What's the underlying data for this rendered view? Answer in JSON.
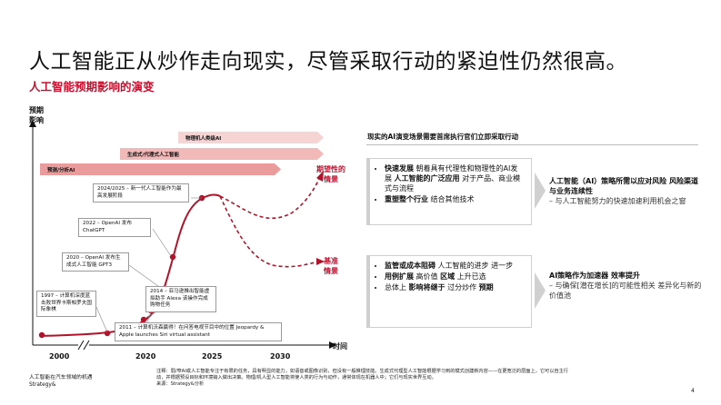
{
  "header": {
    "title": "人工智能正从炒作走向现实，尽管采取行动的紧迫性仍然很高。",
    "subtitle": "人工智能预期影响的演变"
  },
  "chart": {
    "y_label": "预期\n影响",
    "x_label": "时间",
    "ticks": [
      "2000",
      "2020",
      "2025",
      "2030"
    ],
    "banners": [
      {
        "label": "物理机人类级AI",
        "color": "#f7d4d4"
      },
      {
        "label": "生成式/代理式人工智能",
        "color": "#f2b9b9"
      },
      {
        "label": "预测/分析AI",
        "color": "#ea9c9c"
      }
    ],
    "callouts": [
      {
        "text": "2024/2025 – 新一代人工智能作为最高发展阶段"
      },
      {
        "text": "2022 – OpenAI 发布 ChatGPT"
      },
      {
        "text": "2020 – OpenAI 发布生成式人工智能 GPT3"
      },
      {
        "text": "2014 – 亚马逊推出智能虚拟助手 Alexa 该操作完成购物任务"
      },
      {
        "text": "1997 – 计算机深度蓝击败世界卡斯帕罗夫国际象棋"
      },
      {
        "text": "2011 – 计算机沃森赢得！在问答电视节目中的位置 Jeopardy & Apple launches Siri virtual assistant"
      }
    ],
    "scenarios": [
      {
        "label": "期望性的\n情景",
        "color": "#c8102e"
      },
      {
        "label": "基准\n情景",
        "color": "#c8102e"
      }
    ]
  },
  "right_panel": {
    "heading": "现实的AI演变场景需要首席执行官们立即采取行动",
    "blocks": [
      {
        "bullets": [
          {
            "bold": "快速发展",
            "text": " 朝着具有代理性和物理性的AI发展 ",
            "bold2": "人工智能的广泛应用",
            "text2": " 对于产品、商业模式与流程"
          },
          {
            "bold": "重塑整个行业",
            "text": " 结合其他技术"
          }
        ],
        "result_heading": "人工智能（AI）策略所需以应对风险 风险渠道与业务连续性",
        "result_sub": "– 与人工智能努力的快速加速利用机会之窗"
      },
      {
        "bullets": [
          {
            "bold": "监管或成本阻碍",
            "text": " 人工智能的进步",
            "tail": "进一步"
          },
          {
            "bold": "用例扩展",
            "text": " 高价值 ",
            "bold2": "区域",
            "tail": "上升已选"
          },
          {
            "bold": "",
            "text": "总体上 ",
            "bold2": "影响将继于",
            "text2": " 过分炒作 ",
            "bold3": "预期"
          }
        ],
        "result_heading": "AI策略作为加速器 效率提升",
        "result_sub": "– 与确保[潜在增长]的可能性相关 差异化与新的价值池"
      }
    ]
  },
  "footer": {
    "left": "人工智能在汽车领域的机遇\nStrategy&",
    "note": "注释：弱/窄AI或人工智能专注于有限的任务，具有明显的能力，如语音或图像识别，但没有一般推理技能。生成式代理型人工智能根据学习到的模式创建新内容——在更宽泛的层面上，它可以自主行动，并根据预设目标和环境输入做出决策。物理/机人型人工智能将使人类的行为与动作，通常体现在机器人中；它们与现实世界互动。",
    "source": "来源：Strategy&分析",
    "page": "4"
  },
  "colors": {
    "accent": "#c8102e",
    "curve": "#b0142a"
  }
}
